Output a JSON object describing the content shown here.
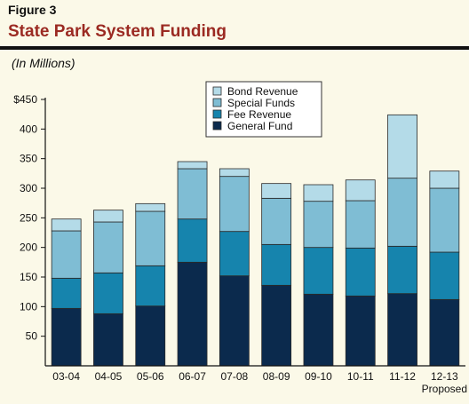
{
  "header": {
    "figure_label": "Figure 3",
    "title": "State Park System Funding"
  },
  "chart_data": {
    "type": "bar",
    "stacked": true,
    "subtitle": "(In Millions)",
    "categories": [
      "03-04",
      "04-05",
      "05-06",
      "06-07",
      "07-08",
      "08-09",
      "09-10",
      "10-11",
      "11-12",
      "12-13"
    ],
    "category_sublabels": [
      "",
      "",
      "",
      "",
      "",
      "",
      "",
      "",
      "",
      "Proposed"
    ],
    "ylim": [
      0,
      450
    ],
    "yticks": [
      50,
      100,
      150,
      200,
      250,
      300,
      350,
      400,
      450
    ],
    "ytick_labels": [
      "50",
      "100",
      "150",
      "200",
      "250",
      "300",
      "350",
      "400",
      "$450"
    ],
    "grid": false,
    "legend_position": "top-center",
    "series": [
      {
        "name": "General Fund",
        "color": "#0b2a4d",
        "values": [
          97,
          88,
          101,
          175,
          152,
          136,
          121,
          118,
          122,
          112
        ]
      },
      {
        "name": "Fee Revenue",
        "color": "#1684ad",
        "values": [
          51,
          69,
          68,
          73,
          75,
          69,
          79,
          81,
          80,
          80
        ]
      },
      {
        "name": "Special Funds",
        "color": "#7fbdd4",
        "values": [
          80,
          86,
          92,
          85,
          93,
          78,
          78,
          80,
          115,
          108
        ]
      },
      {
        "name": "Bond Revenue",
        "color": "#b4dbe8",
        "values": [
          20,
          20,
          13,
          12,
          13,
          25,
          28,
          35,
          107,
          29
        ]
      }
    ],
    "legend_order": [
      "Bond Revenue",
      "Special Funds",
      "Fee Revenue",
      "General Fund"
    ]
  }
}
